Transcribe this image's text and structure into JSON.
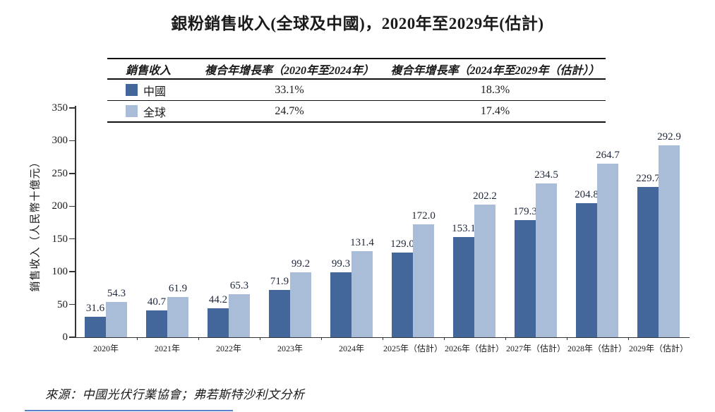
{
  "title": "銀粉銷售收入(全球及中國)，2020年至2029年(估計)",
  "legend_table": {
    "columns": [
      "銷售收入",
      "複合年增長率（2020年至2024年）",
      "複合年增長率（2024年至2029年（估計））"
    ],
    "rows": [
      {
        "label": "中國",
        "color": "#44679B",
        "cagr_2020_2024": "33.1%",
        "cagr_2024_2029": "18.3%"
      },
      {
        "label": "全球",
        "color": "#A9BDD9",
        "cagr_2020_2024": "24.7%",
        "cagr_2024_2029": "17.4%"
      }
    ]
  },
  "chart_data": {
    "type": "bar",
    "title": "銀粉銷售收入(全球及中國)，2020年至2029年(估計)",
    "categories": [
      "2020年",
      "2021年",
      "2022年",
      "2023年",
      "2024年",
      "2025年（估計）",
      "2026年（估計）",
      "2027年（估計）",
      "2028年（估計）",
      "2029年（估計）"
    ],
    "series": [
      {
        "name": "中國",
        "color": "#44679B",
        "values": [
          31.6,
          40.7,
          44.2,
          71.9,
          99.3,
          129.0,
          153.1,
          179.3,
          204.8,
          229.7
        ]
      },
      {
        "name": "全球",
        "color": "#A9BDD9",
        "values": [
          54.3,
          61.9,
          65.3,
          99.2,
          131.4,
          172.0,
          202.2,
          234.5,
          264.7,
          292.9
        ]
      }
    ],
    "ylabel": "銷售收入（人民幣十億元）",
    "ylim": [
      0,
      350
    ],
    "ytick_step": 50,
    "grid": false,
    "legend_position": "top-table",
    "value_labels": true
  },
  "source": "來源：中國光伏行業協會；弗若斯特沙利文分析"
}
